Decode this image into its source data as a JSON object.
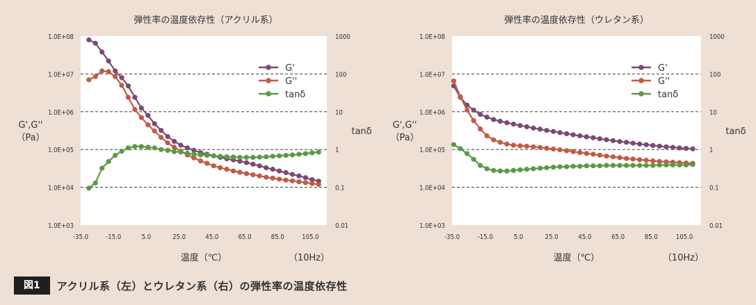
{
  "colors": {
    "background": "#efe0d6",
    "plot_background": "#ffffff",
    "g_prime": "#7a4a72",
    "g_double_prime": "#c25a45",
    "tan_delta": "#5a9a45"
  },
  "caption": {
    "label": "図1",
    "text": "アクリル系（左）とウレタン系（右）の弾性率の温度依存性"
  },
  "chart_data": [
    {
      "type": "line",
      "title": "弾性率の温度依存性（アクリル系）",
      "xlabel": "温度（℃）",
      "xunit": "（10Hz）",
      "ylabel": [
        "G',G''",
        "（Pa）"
      ],
      "y2label": "tanδ",
      "xlim": [
        -35,
        115
      ],
      "ylim": [
        1000,
        100000000
      ],
      "y2lim": [
        0.01,
        1000
      ],
      "yscale": "log",
      "y2scale": "log",
      "x_ticks": [
        "-35.0",
        "-15.0",
        "5.0",
        "25.0",
        "45.0",
        "65.0",
        "85.0",
        "105.0"
      ],
      "y_ticks": [
        "1.0E+03",
        "1.0E+04",
        "1.0E+05",
        "1.0E+06",
        "1.0E+07",
        "1.0E+08"
      ],
      "y2_ticks": [
        "0.01",
        "0.1",
        "1",
        "10",
        "100",
        "1000"
      ],
      "gridlines": "dashed horizontal at y-axis decades",
      "legend_position": "top-right",
      "x": [
        -30,
        -26,
        -22,
        -18,
        -14,
        -10,
        -6,
        -2,
        2,
        6,
        10,
        14,
        18,
        22,
        26,
        30,
        34,
        38,
        42,
        46,
        50,
        54,
        58,
        62,
        66,
        70,
        74,
        78,
        82,
        86,
        90,
        94,
        98,
        102,
        106,
        110
      ],
      "series": [
        {
          "name": "G'",
          "axis": "left",
          "values": [
            80000000,
            65000000,
            38000000,
            22000000,
            12000000,
            8000000,
            4800000,
            2400000,
            1250000,
            800000,
            480000,
            320000,
            220000,
            165000,
            130000,
            110000,
            95000,
            83000,
            75000,
            68000,
            62000,
            57000,
            53000,
            49000,
            45000,
            41000,
            37000,
            33000,
            30000,
            27000,
            24500,
            22000,
            20000,
            18000,
            16000,
            14500
          ]
        },
        {
          "name": "G''",
          "axis": "left",
          "values": [
            7000000,
            8500000,
            12000000,
            11500000,
            8500000,
            5000000,
            2400000,
            1150000,
            700000,
            450000,
            310000,
            210000,
            150000,
            115000,
            90000,
            72000,
            60000,
            50000,
            43000,
            37000,
            33000,
            30000,
            27000,
            25000,
            23000,
            21500,
            20000,
            18500,
            17500,
            16500,
            15500,
            14800,
            14000,
            13300,
            12600,
            12000
          ]
        },
        {
          "name": "tanδ",
          "axis": "right",
          "values": [
            0.095,
            0.13,
            0.32,
            0.48,
            0.7,
            0.9,
            1.1,
            1.2,
            1.2,
            1.15,
            1.1,
            1.0,
            0.95,
            0.88,
            0.85,
            0.8,
            0.75,
            0.72,
            0.7,
            0.68,
            0.66,
            0.64,
            0.63,
            0.62,
            0.62,
            0.62,
            0.63,
            0.64,
            0.66,
            0.68,
            0.7,
            0.72,
            0.75,
            0.78,
            0.82,
            0.86
          ]
        }
      ]
    },
    {
      "type": "line",
      "title": "弾性率の温度依存性（ウレタン系）",
      "xlabel": "温度（℃）",
      "xunit": "（10Hz）",
      "ylabel": [
        "G',G''",
        "（Pa）"
      ],
      "y2label": "tanδ",
      "xlim": [
        -35,
        115
      ],
      "ylim": [
        1000,
        100000000
      ],
      "y2lim": [
        0.01,
        1000
      ],
      "yscale": "log",
      "y2scale": "log",
      "x_ticks": [
        "-35.0",
        "-15.0",
        "5.0",
        "25.0",
        "45.0",
        "65.0",
        "85.0",
        "105.0"
      ],
      "y_ticks": [
        "1.0E+03",
        "1.0E+04",
        "1.0E+05",
        "1.0E+06",
        "1.0E+07",
        "1.0E+08"
      ],
      "y2_ticks": [
        "0.01",
        "0.1",
        "1",
        "10",
        "100",
        "1000"
      ],
      "gridlines": "dashed horizontal at y-axis decades",
      "legend_position": "top-right",
      "x": [
        -34,
        -30,
        -26,
        -22,
        -18,
        -14,
        -10,
        -6,
        -2,
        2,
        6,
        10,
        14,
        18,
        22,
        26,
        30,
        34,
        38,
        42,
        46,
        50,
        54,
        58,
        62,
        66,
        70,
        74,
        78,
        82,
        86,
        90,
        94,
        98,
        102,
        106,
        110
      ],
      "series": [
        {
          "name": "G'",
          "axis": "left",
          "values": [
            4800000,
            2400000,
            1500000,
            1100000,
            850000,
            720000,
            620000,
            560000,
            510000,
            470000,
            430000,
            400000,
            370000,
            345000,
            320000,
            300000,
            280000,
            262000,
            245000,
            230000,
            217000,
            205000,
            193000,
            182000,
            172000,
            163000,
            155000,
            147000,
            140000,
            134000,
            128000,
            123000,
            118000,
            114000,
            110000,
            107000,
            104000
          ]
        },
        {
          "name": "G''",
          "axis": "left",
          "values": [
            6500000,
            2500000,
            1100000,
            580000,
            350000,
            230000,
            180000,
            155000,
            140000,
            130000,
            125000,
            122000,
            118000,
            113000,
            108000,
            103000,
            98000,
            93000,
            88000,
            83000,
            79000,
            75000,
            71000,
            67000,
            64000,
            61000,
            58000,
            56000,
            54000,
            52000,
            50000,
            48500,
            47000,
            46000,
            45000,
            44000,
            43000
          ]
        },
        {
          "name": "tanδ",
          "axis": "right",
          "values": [
            1.35,
            1.05,
            0.78,
            0.55,
            0.38,
            0.31,
            0.28,
            0.27,
            0.27,
            0.28,
            0.29,
            0.3,
            0.31,
            0.32,
            0.33,
            0.34,
            0.35,
            0.35,
            0.36,
            0.36,
            0.37,
            0.37,
            0.37,
            0.38,
            0.38,
            0.38,
            0.38,
            0.38,
            0.38,
            0.38,
            0.38,
            0.39,
            0.39,
            0.39,
            0.39,
            0.39,
            0.4
          ]
        }
      ]
    }
  ]
}
